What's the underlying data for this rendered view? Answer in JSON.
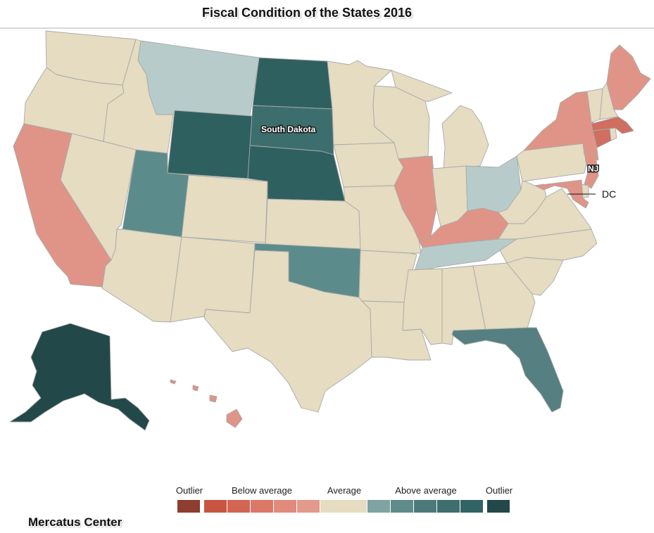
{
  "title": "Fiscal Condition of the States 2016",
  "source": "Mercatus Center",
  "labels": {
    "south_dakota": "South Dakota",
    "nj": "NJ",
    "dc": "DC"
  },
  "legend": {
    "categories": [
      "Outlier",
      "Below average",
      "Average",
      "Above average",
      "Outlier"
    ],
    "swatches": [
      "#8e3d2f",
      "#c85542",
      "#d36553",
      "#dd7767",
      "#e08b7c",
      "#e3998b",
      "#e5dcc1",
      "#7fa3a2",
      "#5f8b8b",
      "#4c7a7a",
      "#3f6e6e",
      "#316464",
      "#234849"
    ]
  },
  "colors": {
    "background": "#ffffff",
    "state_border": "#a9a9a9",
    "average": "#e5dcc1"
  },
  "state_categories": {
    "WA": "average",
    "OR": "average",
    "CA": "below",
    "NV": "average",
    "ID": "average",
    "MT": "slightly-above",
    "WY": "high-above",
    "UT": "above",
    "AZ": "average",
    "CO": "average",
    "NM": "average",
    "ND": "high-above",
    "SD": "high-above",
    "NE": "high-above",
    "KS": "average",
    "OK": "above",
    "TX": "average",
    "MN": "average",
    "IA": "average",
    "MO": "average",
    "AR": "average",
    "LA": "average",
    "WI": "average",
    "IL": "below",
    "MI": "average",
    "IN": "average",
    "OH": "slightly-above",
    "KY": "below",
    "TN": "slightly-above",
    "MS": "average",
    "AL": "average",
    "GA": "average",
    "FL": "above",
    "SC": "average",
    "NC": "average",
    "VA": "average",
    "WV": "average",
    "PA": "average",
    "NY": "below",
    "NJ": "below",
    "DE": "average",
    "MD": "below",
    "CT": "far-below",
    "RI": "average",
    "MA": "far-below",
    "VT": "average",
    "NH": "average",
    "ME": "below",
    "AK": "outlier-above",
    "HI": "below"
  }
}
